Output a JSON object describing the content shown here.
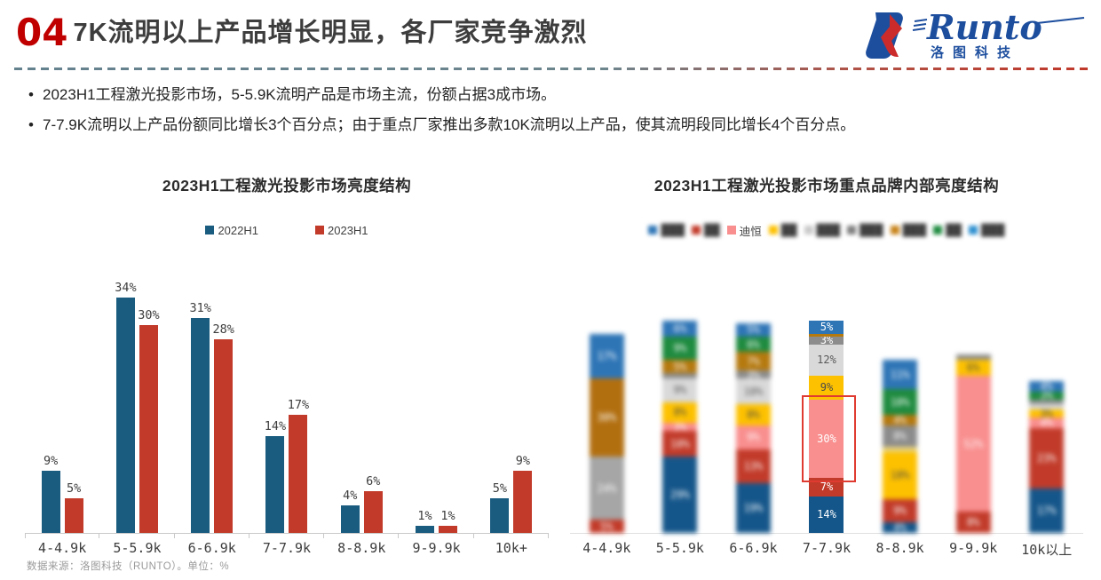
{
  "header": {
    "number": "04",
    "title": "7K流明以上产品增长明显，各厂家竞争激烈"
  },
  "logo": {
    "brand": "Runto",
    "subtitle": "洛图科技"
  },
  "bullets": [
    "2023H1工程激光投影市场，5-5.9K流明产品是市场主流，份额占据3成市场。",
    "7-7.9K流明以上产品份额同比增长3个百分点；由于重点厂家推出多款10K流明以上产品，使其流明段同比增长4个百分点。"
  ],
  "footer": {
    "source": "数据来源：洛图科技（RUNTO）。单位：%"
  },
  "chart_data": [
    {
      "type": "bar",
      "title": "2023H1工程激光投影市场亮度结构",
      "unit": "%",
      "categories": [
        "4-4.9k",
        "5-5.9k",
        "6-6.9k",
        "7-7.9k",
        "8-8.9k",
        "9-9.9k",
        "10k+"
      ],
      "series": [
        {
          "name": "2022H1",
          "color": "#1a5c80",
          "values": [
            9,
            34,
            31,
            14,
            4,
            1,
            5
          ]
        },
        {
          "name": "2023H1",
          "color": "#c23b2a",
          "values": [
            5,
            30,
            28,
            17,
            6,
            1,
            9
          ]
        }
      ],
      "ylim": [
        0,
        36
      ],
      "data_labels": true,
      "legend_position": "top",
      "grid": false
    },
    {
      "type": "bar",
      "stacked": true,
      "title": "2023H1工程激光投影市场重点品牌内部亮度结构",
      "unit": "%",
      "note": "除迪恒及7-7.9k数据列外，品牌名称与数值在原图中为模糊处理",
      "legend": [
        {
          "label": "███",
          "color": "#2e75b6",
          "blurred": true
        },
        {
          "label": "██",
          "color": "#c23b2a",
          "blurred": true
        },
        {
          "label": "迪恒",
          "color": "#f98f8f",
          "blurred": false
        },
        {
          "label": "██",
          "color": "#fdc100",
          "blurred": true
        },
        {
          "label": "███",
          "color": "#c9c9c9",
          "blurred": true
        },
        {
          "label": "███",
          "color": "#7f7f7f",
          "blurred": true
        },
        {
          "label": "███",
          "color": "#c8841a",
          "blurred": true
        },
        {
          "label": "██",
          "color": "#1e8b3f",
          "blurred": true
        },
        {
          "label": "███",
          "color": "#2e90d0",
          "blurred": true
        }
      ],
      "categories": [
        "4-4.9k",
        "5-5.9k",
        "6-6.9k",
        "7-7.9k",
        "8-8.9k",
        "9-9.9k",
        "10k以上"
      ],
      "bars": [
        {
          "category": "4-4.9k",
          "blurred": true,
          "segments": [
            {
              "value": 5,
              "color": "#c23b2a"
            },
            {
              "value": 24,
              "color": "#a6a6a6"
            },
            {
              "value": 30,
              "color": "#b26f10"
            },
            {
              "value": 17,
              "color": "#2e75b6"
            }
          ]
        },
        {
          "category": "5-5.9k",
          "blurred": true,
          "segments": [
            {
              "value": 29,
              "color": "#15568a"
            },
            {
              "value": 10,
              "color": "#c23b2a"
            },
            {
              "value": 3,
              "color": "#f98f8f"
            },
            {
              "value": 8,
              "color": "#fdc100",
              "text": "#4a4a4a"
            },
            {
              "value": 9,
              "color": "#d9d9d9",
              "text": "#595959"
            },
            {
              "value": 2,
              "color": "#8c8c8c"
            },
            {
              "value": 5,
              "color": "#b5790e"
            },
            {
              "value": 9,
              "color": "#1e8b3f"
            },
            {
              "value": 6,
              "color": "#2e75b6"
            }
          ]
        },
        {
          "category": "6-6.9k",
          "blurred": true,
          "segments": [
            {
              "value": 19,
              "color": "#15568a"
            },
            {
              "value": 13,
              "color": "#c23b2a"
            },
            {
              "value": 9,
              "color": "#f98f8f"
            },
            {
              "value": 8,
              "color": "#fdc100",
              "text": "#4a4a4a"
            },
            {
              "value": 10,
              "color": "#d9d9d9",
              "text": "#595959"
            },
            {
              "value": 3,
              "color": "#8c8c8c"
            },
            {
              "value": 7,
              "color": "#b5790e"
            },
            {
              "value": 6,
              "color": "#1e8b3f"
            },
            {
              "value": 5,
              "color": "#2e75b6"
            }
          ]
        },
        {
          "category": "7-7.9k",
          "blurred": false,
          "segments": [
            {
              "value": 14,
              "color": "#15568a"
            },
            {
              "value": 7,
              "color": "#c23b2a"
            },
            {
              "value": 30,
              "color": "#f98f8f",
              "highlight": true
            },
            {
              "value": 9,
              "color": "#fdc100",
              "text": "#4a4a4a"
            },
            {
              "value": 12,
              "color": "#d9d9d9",
              "text": "#595959"
            },
            {
              "value": 3,
              "color": "#8c8c8c"
            },
            {
              "value": 1,
              "color": "#b5790e"
            },
            {
              "value": 5,
              "color": "#2e75b6"
            }
          ]
        },
        {
          "category": "8-8.9k",
          "blurred": true,
          "segments": [
            {
              "value": 4,
              "color": "#15568a"
            },
            {
              "value": 9,
              "color": "#c23b2a"
            },
            {
              "value": 18,
              "color": "#fdc100",
              "text": "#4a4a4a"
            },
            {
              "value": 2,
              "color": "#e8d27a"
            },
            {
              "value": 8,
              "color": "#8c8c8c"
            },
            {
              "value": 4,
              "color": "#b5790e"
            },
            {
              "value": 10,
              "color": "#1e8b3f"
            },
            {
              "value": 11,
              "color": "#2e75b6"
            }
          ]
        },
        {
          "category": "9-9.9k",
          "blurred": true,
          "segments": [
            {
              "value": 8,
              "color": "#c23b2a"
            },
            {
              "value": 52,
              "color": "#f98f8f"
            },
            {
              "value": 6,
              "color": "#fdc100",
              "text": "#4a4a4a"
            },
            {
              "value": 2,
              "color": "#8c8c8c"
            }
          ]
        },
        {
          "category": "10k以上",
          "blurred": true,
          "segments": [
            {
              "value": 17,
              "color": "#15568a"
            },
            {
              "value": 23,
              "color": "#c23b2a"
            },
            {
              "value": 4,
              "color": "#f98f8f"
            },
            {
              "value": 3,
              "color": "#fdc100",
              "text": "#4a4a4a"
            },
            {
              "value": 2,
              "color": "#d9d9d9",
              "text": "#595959"
            },
            {
              "value": 2,
              "color": "#8c8c8c"
            },
            {
              "value": 3,
              "color": "#1e8b3f"
            },
            {
              "value": 4,
              "color": "#2e75b6"
            }
          ]
        }
      ],
      "highlight_note": "7-7.9k迪恒30%分段带红色强调框",
      "legend_position": "top",
      "grid": false
    }
  ]
}
